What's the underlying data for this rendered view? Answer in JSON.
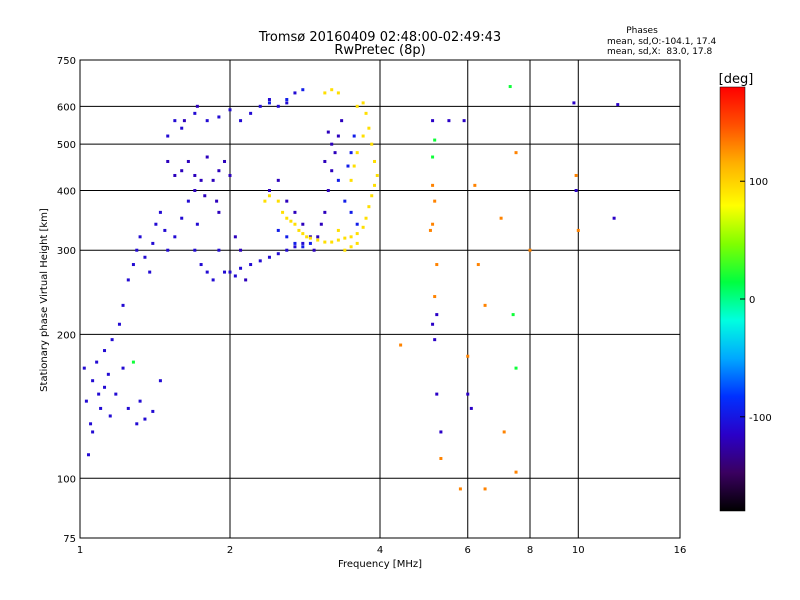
{
  "chart_data": {
    "type": "scatter",
    "title": "Tromsø 20160409 02:48:00-02:49:43",
    "subtitle": "RwPretec (8p)",
    "stats": {
      "header": "Phases",
      "line_o": "mean, sd,O:-104.1, 17.4",
      "line_x": "mean, sd,X:  83.0, 17.8"
    },
    "xlabel": "Frequency [MHz]",
    "ylabel": "Stationary phase Virtual Height [km]",
    "x_scale": "log",
    "y_scale": "log",
    "xlim": [
      1,
      16
    ],
    "ylim": [
      75,
      750
    ],
    "x_ticks": [
      1,
      2,
      4,
      6,
      8,
      10,
      16
    ],
    "x_tick_labels": [
      "1",
      "2",
      "4",
      "6",
      "8",
      "10",
      "16"
    ],
    "y_ticks": [
      75,
      100,
      200,
      300,
      400,
      500,
      600,
      750
    ],
    "y_tick_labels": [
      "75",
      "100",
      "200",
      "300",
      "400",
      "500",
      "600",
      "750"
    ],
    "grid": true,
    "colorbar": {
      "label": "[deg]",
      "range": [
        -180,
        180
      ],
      "ticks": [
        100,
        0,
        -100
      ],
      "tick_labels": [
        "100",
        "0",
        "-100"
      ],
      "colors": [
        "#000000",
        "#3a0060",
        "#2a00c8",
        "#0030ff",
        "#00a8ff",
        "#00ffe0",
        "#00ff40",
        "#80ff00",
        "#ffff00",
        "#ffb000",
        "#ff5000",
        "#ff0000"
      ]
    },
    "series": [
      {
        "phase_deg": -108,
        "points": [
          [
            1.02,
            170
          ],
          [
            1.03,
            145
          ],
          [
            1.05,
            130
          ],
          [
            1.06,
            160
          ],
          [
            1.08,
            175
          ],
          [
            1.09,
            150
          ],
          [
            1.1,
            140
          ],
          [
            1.12,
            185
          ],
          [
            1.14,
            165
          ],
          [
            1.16,
            195
          ],
          [
            1.18,
            150
          ],
          [
            1.2,
            210
          ],
          [
            1.22,
            230
          ],
          [
            1.25,
            260
          ],
          [
            1.28,
            280
          ],
          [
            1.3,
            300
          ],
          [
            1.32,
            320
          ],
          [
            1.35,
            290
          ],
          [
            1.38,
            270
          ],
          [
            1.4,
            310
          ],
          [
            1.42,
            340
          ],
          [
            1.45,
            360
          ],
          [
            1.48,
            330
          ],
          [
            1.5,
            300
          ],
          [
            1.55,
            320
          ],
          [
            1.6,
            350
          ],
          [
            1.65,
            380
          ],
          [
            1.7,
            300
          ],
          [
            1.72,
            340
          ],
          [
            1.75,
            280
          ],
          [
            1.8,
            270
          ],
          [
            1.85,
            260
          ],
          [
            1.9,
            300
          ],
          [
            1.95,
            270
          ],
          [
            2.0,
            270
          ],
          [
            2.05,
            265
          ],
          [
            2.1,
            275
          ],
          [
            2.2,
            280
          ],
          [
            2.3,
            285
          ],
          [
            2.4,
            290
          ],
          [
            2.5,
            295
          ],
          [
            2.6,
            300
          ],
          [
            2.7,
            305
          ],
          [
            2.8,
            310
          ],
          [
            1.5,
            520
          ],
          [
            1.55,
            560
          ],
          [
            1.6,
            540
          ],
          [
            1.7,
            580
          ],
          [
            1.8,
            560
          ],
          [
            1.9,
            570
          ],
          [
            2.0,
            590
          ],
          [
            2.1,
            560
          ],
          [
            2.2,
            580
          ],
          [
            2.3,
            600
          ],
          [
            2.4,
            620
          ],
          [
            2.5,
            600
          ],
          [
            2.6,
            610
          ],
          [
            2.7,
            640
          ],
          [
            1.04,
            112
          ],
          [
            1.06,
            125
          ],
          [
            1.15,
            135
          ],
          [
            1.25,
            140
          ],
          [
            1.3,
            130
          ],
          [
            1.35,
            133
          ],
          [
            1.4,
            138
          ],
          [
            1.12,
            155
          ],
          [
            1.22,
            170
          ],
          [
            1.32,
            145
          ],
          [
            1.45,
            160
          ]
        ]
      },
      {
        "phase_deg": -118,
        "points": [
          [
            1.6,
            440
          ],
          [
            1.65,
            460
          ],
          [
            1.7,
            430
          ],
          [
            1.75,
            420
          ],
          [
            1.8,
            470
          ],
          [
            1.85,
            420
          ],
          [
            1.9,
            440
          ],
          [
            1.95,
            460
          ],
          [
            2.0,
            430
          ],
          [
            1.7,
            400
          ],
          [
            1.78,
            390
          ],
          [
            1.88,
            380
          ],
          [
            1.62,
            560
          ],
          [
            1.72,
            600
          ],
          [
            1.5,
            460
          ],
          [
            1.55,
            430
          ],
          [
            1.9,
            360
          ],
          [
            2.05,
            320
          ],
          [
            2.1,
            300
          ],
          [
            2.15,
            260
          ],
          [
            2.4,
            400
          ],
          [
            2.5,
            420
          ],
          [
            2.6,
            380
          ],
          [
            2.7,
            360
          ],
          [
            2.8,
            340
          ],
          [
            2.9,
            320
          ],
          [
            2.95,
            300
          ],
          [
            3.0,
            320
          ],
          [
            3.05,
            340
          ],
          [
            3.1,
            360
          ],
          [
            3.15,
            400
          ],
          [
            3.2,
            440
          ],
          [
            3.25,
            480
          ],
          [
            3.3,
            520
          ],
          [
            3.35,
            560
          ],
          [
            3.1,
            460
          ],
          [
            3.2,
            500
          ],
          [
            3.15,
            530
          ]
        ]
      },
      {
        "phase_deg": -95,
        "points": [
          [
            2.5,
            330
          ],
          [
            2.6,
            320
          ],
          [
            2.7,
            310
          ],
          [
            2.8,
            305
          ],
          [
            2.9,
            310
          ],
          [
            3.3,
            420
          ],
          [
            3.4,
            380
          ],
          [
            3.5,
            360
          ],
          [
            3.6,
            340
          ],
          [
            3.5,
            480
          ],
          [
            3.55,
            520
          ],
          [
            3.45,
            450
          ],
          [
            2.4,
            610
          ],
          [
            2.6,
            620
          ],
          [
            2.8,
            650
          ]
        ]
      },
      {
        "phase_deg": 95,
        "points": [
          [
            2.5,
            380
          ],
          [
            2.55,
            360
          ],
          [
            2.6,
            350
          ],
          [
            2.65,
            345
          ],
          [
            2.7,
            340
          ],
          [
            2.75,
            330
          ],
          [
            2.8,
            325
          ],
          [
            2.85,
            320
          ],
          [
            2.9,
            318
          ],
          [
            3.0,
            315
          ],
          [
            3.1,
            312
          ],
          [
            3.2,
            312
          ],
          [
            3.3,
            315
          ],
          [
            3.4,
            318
          ],
          [
            3.5,
            320
          ],
          [
            3.6,
            325
          ],
          [
            3.7,
            335
          ],
          [
            3.75,
            350
          ],
          [
            3.8,
            370
          ],
          [
            3.85,
            390
          ],
          [
            3.9,
            410
          ],
          [
            3.95,
            430
          ],
          [
            3.9,
            460
          ],
          [
            3.85,
            500
          ],
          [
            3.8,
            540
          ],
          [
            3.75,
            580
          ],
          [
            3.7,
            610
          ],
          [
            3.6,
            600
          ],
          [
            3.5,
            420
          ],
          [
            3.55,
            450
          ],
          [
            3.6,
            480
          ],
          [
            3.7,
            520
          ],
          [
            3.3,
            330
          ],
          [
            3.4,
            300
          ],
          [
            3.5,
            305
          ],
          [
            3.6,
            310
          ],
          [
            2.35,
            380
          ],
          [
            2.4,
            390
          ],
          [
            3.1,
            640
          ],
          [
            3.2,
            650
          ],
          [
            3.3,
            640
          ]
        ]
      },
      {
        "phase_deg": 130,
        "points": [
          [
            5.1,
            410
          ],
          [
            5.15,
            380
          ],
          [
            5.1,
            340
          ],
          [
            5.05,
            330
          ],
          [
            5.2,
            280
          ],
          [
            5.15,
            240
          ],
          [
            6.2,
            410
          ],
          [
            6.3,
            280
          ],
          [
            6.5,
            230
          ],
          [
            7.0,
            350
          ],
          [
            7.5,
            480
          ],
          [
            8.0,
            300
          ],
          [
            6.0,
            180
          ],
          [
            5.3,
            110
          ],
          [
            4.4,
            190
          ],
          [
            5.8,
            95
          ],
          [
            6.5,
            95
          ],
          [
            7.5,
            103
          ],
          [
            7.1,
            125
          ],
          [
            9.9,
            430
          ],
          [
            10.0,
            330
          ]
        ]
      },
      {
        "phase_deg": 20,
        "points": [
          [
            5.1,
            470
          ],
          [
            5.15,
            510
          ],
          [
            7.4,
            220
          ],
          [
            7.5,
            170
          ],
          [
            7.3,
            660
          ],
          [
            1.28,
            175
          ]
        ]
      },
      {
        "phase_deg": -115,
        "points": [
          [
            5.1,
            560
          ],
          [
            5.5,
            560
          ],
          [
            5.9,
            560
          ],
          [
            9.8,
            610
          ],
          [
            12.0,
            605
          ],
          [
            11.8,
            350
          ],
          [
            9.9,
            400
          ],
          [
            5.2,
            220
          ],
          [
            5.1,
            210
          ],
          [
            5.15,
            195
          ],
          [
            5.2,
            150
          ],
          [
            5.3,
            125
          ],
          [
            6.0,
            150
          ],
          [
            6.1,
            140
          ]
        ]
      }
    ]
  }
}
